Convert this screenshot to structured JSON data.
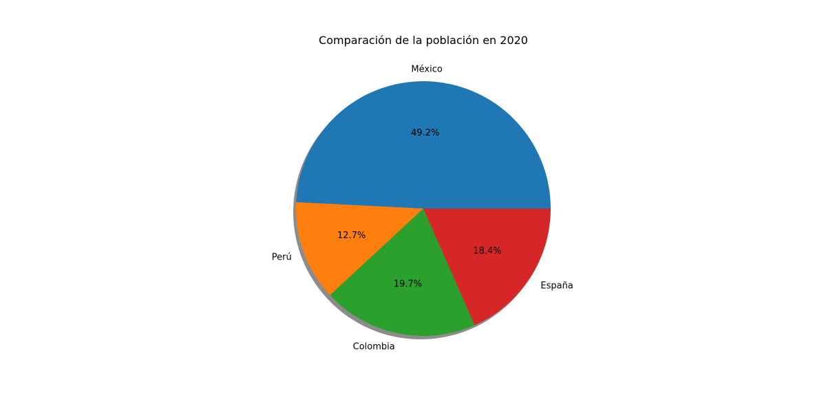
{
  "chart_data": {
    "type": "pie",
    "title": "Comparación de la población en 2020",
    "categories": [
      "México",
      "Perú",
      "Colombia",
      "España"
    ],
    "values": [
      49.2,
      12.7,
      19.7,
      18.4
    ],
    "percent_labels": [
      "49.2%",
      "12.7%",
      "19.7%",
      "18.4%"
    ],
    "colors": [
      "#1f77b4",
      "#ff7f0e",
      "#2ca02c",
      "#d62728"
    ],
    "start_angle_deg": 0,
    "direction": "counterclockwise",
    "shadow": true,
    "legend": "none"
  }
}
